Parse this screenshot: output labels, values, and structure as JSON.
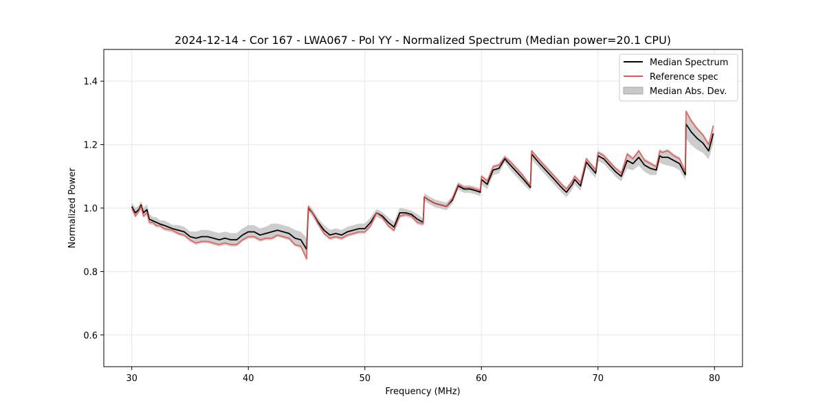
{
  "chart_data": {
    "type": "line",
    "title": "2024-12-14 - Cor 167 - LWA067 - Pol YY - Normalized Spectrum (Median power=20.1 CPU)",
    "xlabel": "Frequency (MHz)",
    "ylabel": "Normalized Power",
    "xlim": [
      27.6,
      82.4
    ],
    "ylim": [
      0.5,
      1.5
    ],
    "xticks": [
      30,
      40,
      50,
      60,
      70,
      80
    ],
    "yticks": [
      0.6,
      0.8,
      1.0,
      1.2,
      1.4
    ],
    "xtick_labels": [
      "30",
      "40",
      "50",
      "60",
      "70",
      "80"
    ],
    "ytick_labels": [
      "0.6",
      "0.8",
      "1.0",
      "1.2",
      "1.4"
    ],
    "grid": true,
    "legend_position": "top-right",
    "legend": [
      "Median Spectrum",
      "Reference spec",
      "Median Abs. Dev."
    ],
    "x": [
      30.0,
      30.3,
      30.6,
      30.8,
      31.0,
      31.3,
      31.5,
      31.8,
      32.1,
      32.4,
      32.8,
      33.5,
      34.0,
      34.5,
      35.0,
      35.5,
      36.0,
      36.5,
      37.0,
      37.5,
      38.0,
      38.5,
      39.0,
      39.5,
      40.0,
      40.5,
      41.0,
      41.5,
      42.0,
      42.5,
      43.0,
      43.5,
      44.0,
      44.5,
      45.0,
      45.15,
      45.5,
      46.0,
      46.5,
      47.0,
      47.5,
      48.0,
      48.5,
      49.0,
      49.5,
      50.0,
      50.5,
      51.0,
      51.5,
      52.0,
      52.5,
      53.0,
      53.5,
      54.0,
      54.5,
      55.0,
      55.1,
      55.5,
      56.0,
      56.5,
      57.0,
      57.5,
      58.0,
      58.5,
      59.0,
      59.5,
      59.9,
      60.0,
      60.5,
      61.0,
      61.5,
      62.0,
      62.5,
      63.0,
      63.5,
      64.2,
      64.3,
      65.0,
      66.0,
      67.0,
      67.3,
      67.8,
      68.0,
      68.5,
      69.0,
      69.8,
      70.0,
      70.5,
      71.0,
      71.5,
      72.0,
      72.3,
      72.5,
      73.0,
      73.5,
      74.0,
      74.5,
      75.0,
      75.3,
      75.5,
      76.0,
      76.5,
      77.0,
      77.5,
      77.55,
      78.0,
      78.5,
      79.0,
      79.5,
      79.9
    ],
    "series": [
      {
        "name": "Median Spectrum",
        "color": "#000000",
        "values": [
          1.005,
          0.985,
          0.995,
          1.01,
          0.985,
          0.995,
          0.965,
          0.96,
          0.955,
          0.95,
          0.945,
          0.935,
          0.93,
          0.925,
          0.91,
          0.905,
          0.91,
          0.91,
          0.905,
          0.9,
          0.905,
          0.9,
          0.9,
          0.915,
          0.925,
          0.925,
          0.915,
          0.92,
          0.925,
          0.93,
          0.925,
          0.92,
          0.905,
          0.9,
          0.87,
          1.0,
          0.985,
          0.955,
          0.93,
          0.915,
          0.92,
          0.915,
          0.925,
          0.93,
          0.935,
          0.935,
          0.955,
          0.985,
          0.975,
          0.955,
          0.94,
          0.985,
          0.985,
          0.98,
          0.965,
          0.955,
          1.035,
          1.025,
          1.015,
          1.01,
          1.005,
          1.025,
          1.07,
          1.06,
          1.06,
          1.055,
          1.05,
          1.09,
          1.075,
          1.12,
          1.125,
          1.155,
          1.135,
          1.115,
          1.095,
          1.065,
          1.17,
          1.14,
          1.1,
          1.06,
          1.05,
          1.075,
          1.09,
          1.07,
          1.145,
          1.11,
          1.165,
          1.155,
          1.135,
          1.115,
          1.1,
          1.13,
          1.15,
          1.14,
          1.16,
          1.135,
          1.125,
          1.12,
          1.165,
          1.16,
          1.16,
          1.15,
          1.14,
          1.105,
          1.265,
          1.24,
          1.22,
          1.205,
          1.18,
          1.235
        ]
      },
      {
        "name": "Reference spec",
        "color": "#e8534f",
        "values": [
          1.0,
          0.975,
          0.99,
          1.005,
          0.975,
          0.985,
          0.955,
          0.955,
          0.945,
          0.945,
          0.935,
          0.93,
          0.92,
          0.915,
          0.9,
          0.89,
          0.895,
          0.895,
          0.89,
          0.885,
          0.89,
          0.885,
          0.885,
          0.9,
          0.91,
          0.91,
          0.9,
          0.905,
          0.905,
          0.915,
          0.91,
          0.905,
          0.885,
          0.88,
          0.84,
          1.005,
          0.985,
          0.95,
          0.92,
          0.905,
          0.91,
          0.905,
          0.915,
          0.92,
          0.925,
          0.925,
          0.945,
          0.985,
          0.97,
          0.945,
          0.93,
          0.975,
          0.98,
          0.975,
          0.955,
          0.95,
          1.035,
          1.025,
          1.015,
          1.01,
          1.005,
          1.03,
          1.075,
          1.065,
          1.065,
          1.06,
          1.055,
          1.1,
          1.085,
          1.13,
          1.135,
          1.16,
          1.145,
          1.125,
          1.105,
          1.07,
          1.18,
          1.15,
          1.11,
          1.07,
          1.06,
          1.085,
          1.1,
          1.08,
          1.155,
          1.12,
          1.175,
          1.165,
          1.145,
          1.125,
          1.11,
          1.145,
          1.17,
          1.155,
          1.18,
          1.15,
          1.14,
          1.13,
          1.18,
          1.175,
          1.18,
          1.165,
          1.155,
          1.115,
          1.305,
          1.275,
          1.25,
          1.23,
          1.2,
          1.26
        ]
      }
    ]
  }
}
